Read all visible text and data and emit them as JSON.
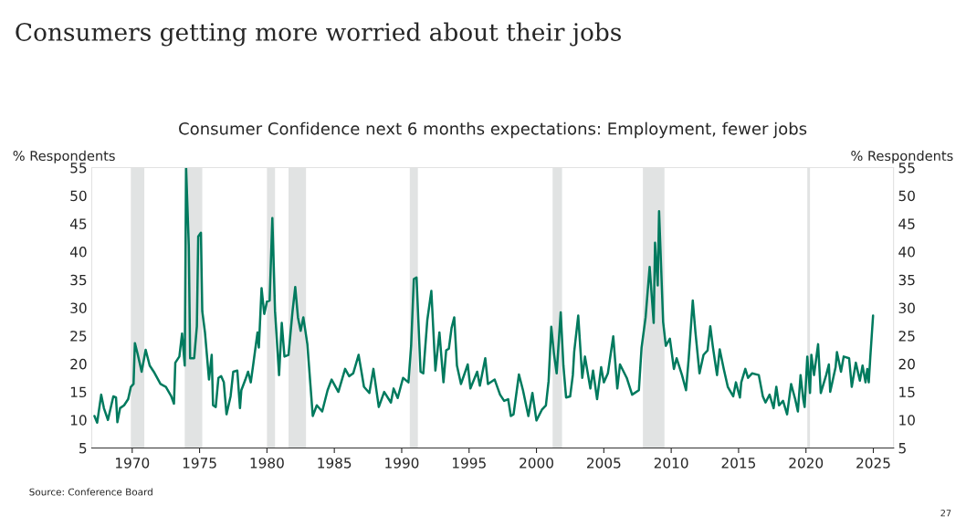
{
  "chart_data": {
    "type": "line",
    "title": "Consumers getting more worried about their jobs",
    "subtitle": "Consumer Confidence next 6 months expectations: Employment, fewer jobs",
    "ylabel": "% Respondents",
    "y2label": "% Respondents",
    "x": [
      1967.2,
      1967.4,
      1967.7,
      1967.9,
      1968.2,
      1968.6,
      1968.8,
      1968.9,
      1969.1,
      1969.4,
      1969.7,
      1969.9,
      1970.1,
      1970.2,
      1970.4,
      1970.7,
      1971.0,
      1971.3,
      1971.6,
      1972.1,
      1972.5,
      1972.9,
      1973.1,
      1973.2,
      1973.5,
      1973.7,
      1973.9,
      1974.0,
      1974.2,
      1974.3,
      1974.6,
      1974.8,
      1974.9,
      1975.1,
      1975.2,
      1975.4,
      1975.7,
      1975.9,
      1976.0,
      1976.2,
      1976.4,
      1976.6,
      1976.8,
      1977.0,
      1977.3,
      1977.5,
      1977.8,
      1978.0,
      1978.1,
      1978.4,
      1978.6,
      1978.8,
      1979.0,
      1979.3,
      1979.4,
      1979.6,
      1979.8,
      1980.0,
      1980.2,
      1980.4,
      1980.6,
      1980.9,
      1981.1,
      1981.3,
      1981.6,
      1981.9,
      1982.1,
      1982.3,
      1982.5,
      1982.7,
      1983.0,
      1983.4,
      1983.7,
      1984.1,
      1984.5,
      1984.8,
      1985.3,
      1985.8,
      1986.1,
      1986.4,
      1986.8,
      1987.0,
      1987.2,
      1987.6,
      1987.9,
      1988.3,
      1988.7,
      1989.2,
      1989.4,
      1989.7,
      1990.1,
      1990.5,
      1990.7,
      1990.9,
      1991.1,
      1991.4,
      1991.6,
      1991.9,
      1992.2,
      1992.5,
      1992.8,
      1993.1,
      1993.3,
      1993.5,
      1993.7,
      1993.9,
      1994.1,
      1994.4,
      1994.9,
      1995.1,
      1995.6,
      1995.8,
      1996.2,
      1996.4,
      1996.9,
      1997.3,
      1997.6,
      1997.9,
      1998.1,
      1998.3,
      1998.7,
      1999.0,
      1999.4,
      1999.7,
      2000.0,
      2000.4,
      2000.7,
      2000.9,
      2001.1,
      2001.3,
      2001.5,
      2001.8,
      2002.0,
      2002.2,
      2002.5,
      2002.7,
      2002.8,
      2003.1,
      2003.4,
      2003.6,
      2004.0,
      2004.2,
      2004.5,
      2004.8,
      2005.0,
      2005.3,
      2005.7,
      2006.0,
      2006.2,
      2006.7,
      2007.1,
      2007.6,
      2007.8,
      2008.1,
      2008.4,
      2008.7,
      2008.8,
      2009.0,
      2009.1,
      2009.4,
      2009.6,
      2009.9,
      2010.2,
      2010.4,
      2010.8,
      2011.1,
      2011.3,
      2011.6,
      2011.8,
      2012.1,
      2012.4,
      2012.7,
      2012.9,
      2013.1,
      2013.4,
      2013.6,
      2013.9,
      2014.2,
      2014.6,
      2014.8,
      2015.1,
      2015.2,
      2015.5,
      2015.7,
      2016.0,
      2016.5,
      2016.8,
      2017.0,
      2017.3,
      2017.6,
      2017.8,
      2018.0,
      2018.3,
      2018.6,
      2018.9,
      2019.2,
      2019.4,
      2019.6,
      2019.8,
      2019.9,
      2020.1,
      2020.3,
      2020.4,
      2020.6,
      2020.9,
      2021.1,
      2021.5,
      2021.7,
      2021.8,
      2022.2,
      2022.3,
      2022.6,
      2022.8,
      2023.2,
      2023.4,
      2023.7,
      2024.0,
      2024.2,
      2024.42,
      2024.55,
      2024.66,
      2024.77,
      2024.98
    ],
    "series": [
      {
        "color": "#007a5e",
        "values": [
          10.7,
          9.5,
          14.5,
          12.1,
          10.0,
          14.2,
          14.0,
          9.6,
          12.1,
          12.6,
          13.7,
          15.9,
          16.4,
          23.7,
          21.8,
          18.6,
          22.5,
          19.7,
          18.6,
          16.4,
          15.9,
          14.2,
          12.9,
          20.2,
          21.3,
          25.4,
          19.7,
          55,
          41.1,
          21.0,
          21.0,
          26.7,
          42.7,
          43.4,
          29.4,
          25.6,
          17.2,
          21.6,
          12.6,
          12.3,
          17.5,
          17.8,
          16.7,
          11.0,
          14.2,
          18.6,
          18.8,
          12.1,
          15.3,
          17.2,
          18.6,
          16.7,
          20.2,
          25.6,
          22.9,
          33.5,
          28.9,
          31.1,
          31.3,
          46.0,
          29.4,
          18.0,
          27.3,
          21.3,
          21.6,
          29.4,
          33.7,
          28.3,
          25.9,
          28.3,
          23.5,
          10.7,
          12.6,
          11.5,
          15.3,
          17.2,
          15.0,
          19.1,
          17.8,
          18.3,
          21.6,
          18.8,
          15.9,
          14.8,
          19.1,
          12.3,
          15.0,
          13.1,
          15.6,
          13.9,
          17.5,
          16.7,
          23.2,
          35.1,
          35.4,
          18.6,
          18.3,
          27.8,
          33.0,
          18.8,
          25.6,
          16.7,
          22.4,
          22.7,
          26.4,
          28.3,
          19.7,
          16.4,
          19.9,
          15.6,
          18.6,
          16.1,
          21.0,
          16.4,
          17.2,
          14.5,
          13.4,
          13.7,
          10.7,
          11.0,
          18.1,
          15.3,
          10.7,
          14.8,
          9.9,
          11.8,
          12.6,
          16.9,
          26.6,
          21.8,
          18.3,
          29.2,
          19.7,
          14.0,
          14.2,
          18.0,
          22.1,
          28.6,
          17.5,
          21.3,
          15.6,
          18.8,
          13.7,
          19.4,
          16.7,
          18.3,
          24.9,
          15.6,
          19.9,
          17.5,
          14.5,
          15.3,
          22.9,
          28.3,
          37.3,
          27.3,
          41.6,
          34.0,
          47.2,
          27.5,
          23.2,
          24.5,
          19.1,
          21.0,
          18.0,
          15.3,
          21.0,
          31.3,
          25.6,
          18.3,
          21.6,
          22.4,
          26.7,
          22.9,
          18.0,
          22.6,
          19.1,
          15.9,
          14.2,
          16.7,
          14.0,
          16.7,
          19.1,
          17.5,
          18.3,
          18.0,
          14.2,
          13.1,
          14.5,
          12.1,
          15.9,
          12.6,
          13.4,
          11.0,
          16.4,
          13.7,
          11.5,
          18.0,
          13.7,
          12.3,
          21.3,
          14.8,
          21.6,
          18.0,
          23.5,
          14.8,
          18.0,
          19.9,
          15.0,
          19.4,
          22.1,
          18.6,
          21.3,
          21.0,
          15.9,
          20.2,
          17.0,
          19.7,
          16.7,
          19.1,
          16.7,
          21.0,
          28.6
        ]
      }
    ],
    "xlim": [
      1967,
      2026.5
    ],
    "xticks": [
      1970,
      1975,
      1980,
      1985,
      1990,
      1995,
      2000,
      2005,
      2010,
      2015,
      2020,
      2025
    ],
    "ylim": [
      5,
      55
    ],
    "yticks": [
      5,
      10,
      15,
      20,
      25,
      30,
      35,
      40,
      45,
      50,
      55
    ],
    "y2lim": [
      5,
      55
    ],
    "y2ticks": [
      5,
      10,
      15,
      20,
      25,
      30,
      35,
      40,
      45,
      50,
      55
    ],
    "bands": [
      {
        "axis": "x",
        "from": 1969.9,
        "to": 1970.9,
        "color": "#e1e3e3"
      },
      {
        "axis": "x",
        "from": 1973.9,
        "to": 1975.2,
        "color": "#e1e3e3"
      },
      {
        "axis": "x",
        "from": 1980.0,
        "to": 1980.6,
        "color": "#e1e3e3"
      },
      {
        "axis": "x",
        "from": 1981.6,
        "to": 1982.9,
        "color": "#e1e3e3"
      },
      {
        "axis": "x",
        "from": 1990.6,
        "to": 1991.2,
        "color": "#e1e3e3"
      },
      {
        "axis": "x",
        "from": 2001.2,
        "to": 2001.9,
        "color": "#e1e3e3"
      },
      {
        "axis": "x",
        "from": 2007.9,
        "to": 2009.5,
        "color": "#e1e3e3"
      },
      {
        "axis": "x",
        "from": 2020.1,
        "to": 2020.3,
        "color": "#e1e3e3"
      }
    ],
    "annotations": [
      "Source: Conference Board",
      "27"
    ],
    "grid": false,
    "legend": false,
    "marker": "none",
    "line_style": "solid"
  }
}
